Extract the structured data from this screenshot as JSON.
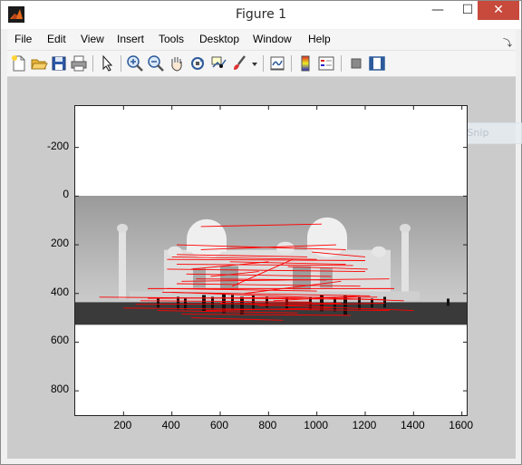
{
  "window": {
    "title": "Figure 1",
    "close_glyph": "✕",
    "min_glyph": "—",
    "max_glyph": "☐",
    "dock_glyph": "⤵"
  },
  "menu": [
    "File",
    "Edit",
    "View",
    "Insert",
    "Tools",
    "Desktop",
    "Window",
    "Help"
  ],
  "toolbar": {
    "icons": [
      "new-figure-icon",
      "open-file-icon",
      "save-icon",
      "print-icon",
      "pointer-icon",
      "zoom-in-icon",
      "zoom-out-icon",
      "pan-hand-icon",
      "rotate-3d-icon",
      "data-cursor-icon",
      "brush-icon",
      "brush-dropdown-icon",
      "link-plot-icon",
      "colorbar-icon",
      "legend-icon",
      "hide-plot-tools-icon",
      "show-plot-tools-icon"
    ]
  },
  "ghost_tooltip": "Window Snip",
  "colors": {
    "line": "#ff0000",
    "close_button": "#c74a3d",
    "figure_bg": "#cbcbcb"
  },
  "chart_data": {
    "type": "line",
    "title": "",
    "xlabel": "",
    "ylabel": "",
    "xlim": [
      0,
      1620
    ],
    "ylim": [
      900,
      -370
    ],
    "y_reversed": true,
    "xticks": [
      200,
      400,
      600,
      800,
      1000,
      1200,
      1400,
      1600
    ],
    "xtick_labels": [
      "200",
      "400",
      "600",
      "800",
      "1000",
      "1200",
      "1400",
      "1600"
    ],
    "yticks": [
      -200,
      0,
      200,
      400,
      600,
      800
    ],
    "ytick_labels": [
      "-200",
      "0",
      "200",
      "400",
      "600",
      "800"
    ],
    "image_extent": {
      "x": [
        0,
        1620
      ],
      "y": [
        0,
        530
      ]
    },
    "segments": [
      [
        520,
        125,
        1020,
        115
      ],
      [
        420,
        200,
        1120,
        220
      ],
      [
        400,
        250,
        1000,
        260
      ],
      [
        380,
        260,
        1200,
        265
      ],
      [
        420,
        280,
        1150,
        285
      ],
      [
        380,
        300,
        1200,
        310
      ],
      [
        460,
        320,
        1060,
        330
      ],
      [
        500,
        340,
        1040,
        345
      ],
      [
        420,
        360,
        1180,
        370
      ],
      [
        380,
        380,
        1000,
        390
      ],
      [
        360,
        395,
        1220,
        410
      ],
      [
        300,
        420,
        1250,
        415
      ],
      [
        270,
        430,
        980,
        435
      ],
      [
        250,
        445,
        1100,
        440
      ],
      [
        200,
        460,
        1300,
        470
      ],
      [
        340,
        470,
        920,
        480
      ],
      [
        440,
        485,
        1140,
        490
      ],
      [
        480,
        500,
        860,
        510
      ],
      [
        100,
        415,
        1280,
        425
      ],
      [
        400,
        395,
        1360,
        430
      ],
      [
        440,
        350,
        1300,
        340
      ],
      [
        560,
        330,
        760,
        310
      ],
      [
        650,
        370,
        900,
        260
      ],
      [
        700,
        400,
        1100,
        350
      ],
      [
        820,
        430,
        1180,
        410
      ],
      [
        600,
        440,
        1400,
        470
      ],
      [
        540,
        470,
        1060,
        460
      ],
      [
        760,
        450,
        1280,
        440
      ],
      [
        480,
        300,
        800,
        270
      ],
      [
        420,
        240,
        960,
        250
      ],
      [
        1200,
        250,
        980,
        230
      ],
      [
        1210,
        300,
        880,
        290
      ],
      [
        300,
        380,
        1320,
        380
      ],
      [
        640,
        270,
        1120,
        280
      ],
      [
        520,
        220,
        1080,
        200
      ]
    ]
  }
}
